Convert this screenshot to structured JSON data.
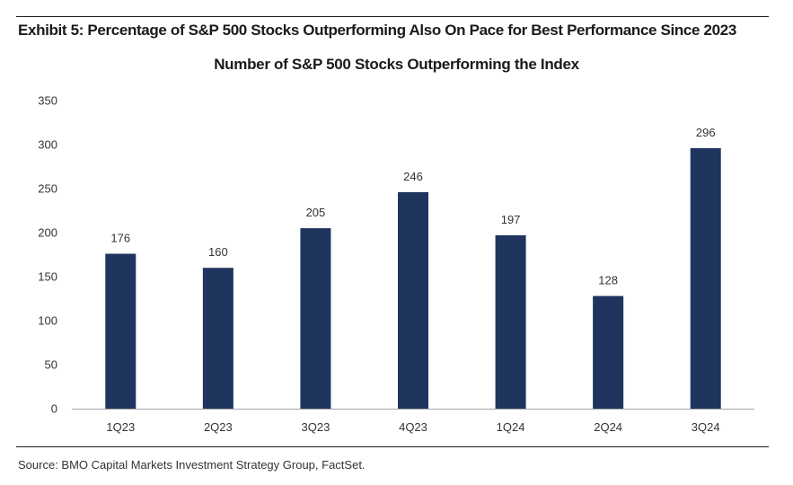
{
  "exhibit_title": "Exhibit 5: Percentage of S&P 500 Stocks Outperforming Also On Pace for Best Performance Since 2023",
  "source": "Source: BMO Capital Markets Investment Strategy Group, FactSet.",
  "colors": {
    "bar": "#1f355e",
    "axis": "#a6a6a6",
    "text": "#333333",
    "rule": "#1a1a1a"
  },
  "chart_data": {
    "type": "bar",
    "title": "Number of S&P 500 Stocks Outperforming the Index",
    "xlabel": "",
    "ylabel": "",
    "categories": [
      "1Q23",
      "2Q23",
      "3Q23",
      "4Q23",
      "1Q24",
      "2Q24",
      "3Q24"
    ],
    "values": [
      176,
      160,
      205,
      246,
      197,
      128,
      296
    ],
    "data_labels": [
      "176",
      "160",
      "205",
      "246",
      "197",
      "128",
      "296"
    ],
    "ylim": [
      0,
      350
    ],
    "yticks": [
      0,
      50,
      100,
      150,
      200,
      250,
      300,
      350
    ],
    "ytick_labels": [
      "0",
      "50",
      "100",
      "150",
      "200",
      "250",
      "300",
      "350"
    ],
    "grid": false,
    "legend": "none"
  }
}
